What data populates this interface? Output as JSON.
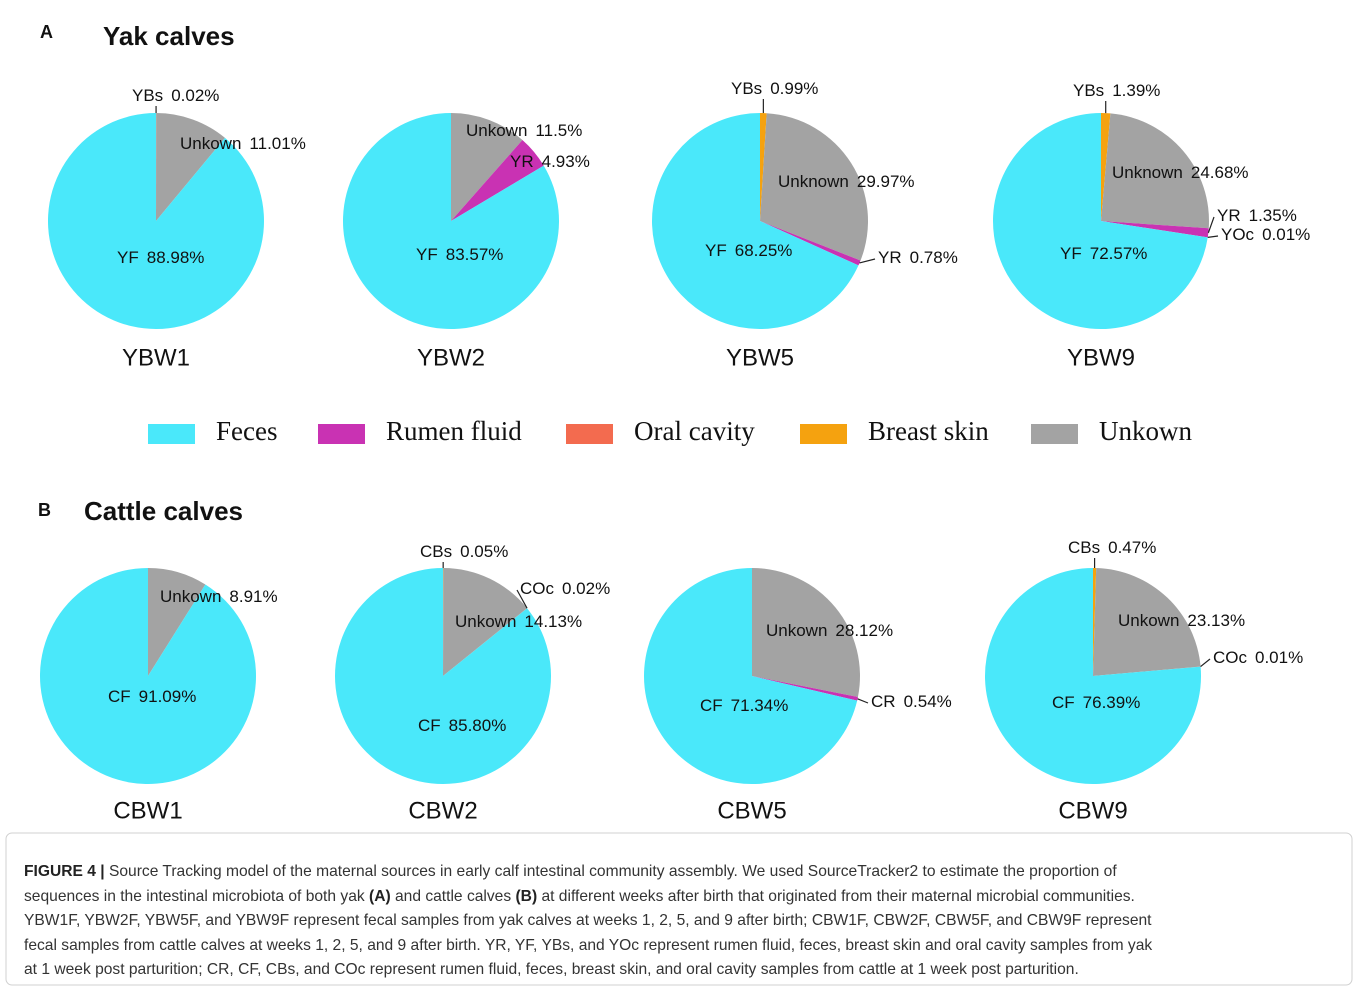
{
  "panels": [
    {
      "letter": "A",
      "title": "Yak calves"
    },
    {
      "letter": "B",
      "title": "Cattle calves"
    }
  ],
  "legend": {
    "labels": [
      "Feces",
      "Rumen fluid",
      "Oral cavity",
      "Breast skin",
      "Unkown"
    ],
    "colors": [
      "#4ae8fa",
      "#c932b3",
      "#f36b4f",
      "#f5a20f",
      "#a3a3a3"
    ]
  },
  "chart_data": [
    {
      "type": "pie",
      "title": "YBW1",
      "categories": [
        "YBs",
        "Unkown",
        "YF"
      ],
      "values": [
        0.02,
        11.01,
        88.98
      ],
      "value_labels": [
        "0.02%",
        "11.01%",
        "88.98%"
      ],
      "colors": [
        "#f5a20f",
        "#a3a3a3",
        "#4ae8fa"
      ]
    },
    {
      "type": "pie",
      "title": "YBW2",
      "categories": [
        "Unkown",
        "YR",
        "YF"
      ],
      "values": [
        11.5,
        4.93,
        83.57
      ],
      "value_labels": [
        "11.5%",
        "4.93%",
        "83.57%"
      ],
      "colors": [
        "#a3a3a3",
        "#c932b3",
        "#4ae8fa"
      ]
    },
    {
      "type": "pie",
      "title": "YBW5",
      "categories": [
        "YBs",
        "Unknown",
        "YR",
        "YF"
      ],
      "values": [
        0.99,
        29.97,
        0.78,
        68.25
      ],
      "value_labels": [
        "0.99%",
        "29.97%",
        "0.78%",
        "68.25%"
      ],
      "colors": [
        "#f5a20f",
        "#a3a3a3",
        "#c932b3",
        "#4ae8fa"
      ]
    },
    {
      "type": "pie",
      "title": "YBW9",
      "categories": [
        "YBs",
        "Unknown",
        "YR",
        "YOc",
        "YF"
      ],
      "values": [
        1.39,
        24.68,
        1.35,
        0.01,
        72.57
      ],
      "value_labels": [
        "1.39%",
        "24.68%",
        "1.35%",
        "0.01%",
        "72.57%"
      ],
      "colors": [
        "#f5a20f",
        "#a3a3a3",
        "#c932b3",
        "#f36b4f",
        "#4ae8fa"
      ]
    },
    {
      "type": "pie",
      "title": "CBW1",
      "categories": [
        "Unkown",
        "CF"
      ],
      "values": [
        8.91,
        91.09
      ],
      "value_labels": [
        "8.91%",
        "91.09%"
      ],
      "colors": [
        "#a3a3a3",
        "#4ae8fa"
      ]
    },
    {
      "type": "pie",
      "title": "CBW2",
      "categories": [
        "CBs",
        "Unkown",
        "COc",
        "CF"
      ],
      "values": [
        0.05,
        14.13,
        0.02,
        85.8
      ],
      "value_labels": [
        "0.05%",
        "14.13%",
        "0.02%",
        "85.80%"
      ],
      "colors": [
        "#f5a20f",
        "#a3a3a3",
        "#f36b4f",
        "#4ae8fa"
      ]
    },
    {
      "type": "pie",
      "title": "CBW5",
      "categories": [
        "Unkown",
        "CR",
        "CF"
      ],
      "values": [
        28.12,
        0.54,
        71.34
      ],
      "value_labels": [
        "28.12%",
        "0.54%",
        "71.34%"
      ],
      "colors": [
        "#a3a3a3",
        "#c932b3",
        "#4ae8fa"
      ]
    },
    {
      "type": "pie",
      "title": "CBW9",
      "categories": [
        "CBs",
        "Unkown",
        "COc",
        "CF"
      ],
      "values": [
        0.47,
        23.13,
        0.01,
        76.39
      ],
      "value_labels": [
        "0.47%",
        "23.13%",
        "0.01%",
        "76.39%"
      ],
      "colors": [
        "#f5a20f",
        "#a3a3a3",
        "#f36b4f",
        "#4ae8fa"
      ]
    }
  ],
  "caption": [
    [
      {
        "text": "FIGURE 4 |",
        "bold": true
      },
      {
        "text": " Source Tracking model of the maternal sources in early calf intestinal community assembly. We used SourceTracker2 to estimate the proportion of",
        "bold": false
      }
    ],
    [
      {
        "text": "sequences in the intestinal microbiota of both yak ",
        "bold": false
      },
      {
        "text": "(A)",
        "bold": true
      },
      {
        "text": " and cattle calves ",
        "bold": false
      },
      {
        "text": "(B)",
        "bold": true
      },
      {
        "text": " at different weeks after birth that originated from their maternal microbial communities.",
        "bold": false
      }
    ],
    [
      {
        "text": "YBW1F, YBW2F, YBW5F, and YBW9F represent fecal samples from yak calves at weeks 1, 2, 5, and 9 after birth; CBW1F, CBW2F, CBW5F, and CBW9F represent",
        "bold": false
      }
    ],
    [
      {
        "text": "fecal samples from cattle calves at weeks 1, 2, 5, and 9 after birth. YR, YF, YBs, and YOc represent rumen fluid, feces, breast skin and oral cavity samples from yak",
        "bold": false
      }
    ],
    [
      {
        "text": "at 1 week post parturition; CR, CF, CBs, and COc represent rumen fluid, feces, breast skin, and oral cavity samples from cattle at 1 week post parturition.",
        "bold": false
      }
    ]
  ]
}
